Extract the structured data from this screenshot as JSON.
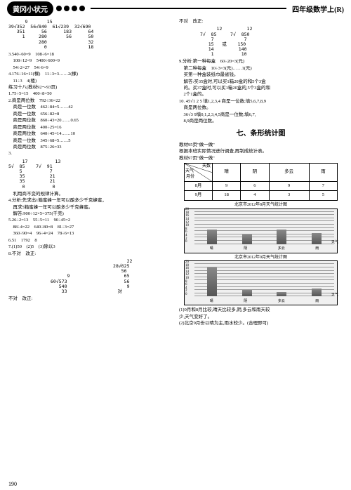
{
  "header": {
    "badge": "黄冈小状元",
    "right": "四年级数学上(R)"
  },
  "left": {
    "div1": [
      "      9       15",
      "39√352  56√840  61√239  32√690",
      "   351      56      183      64",
      "     1     280       56      50",
      "           280               32",
      "             0               18"
    ],
    "l3": "3.540÷60=9　108÷6=18",
    "l4": "　108÷12=9　5400÷600=9",
    "l5": "　54÷2=27　54÷6=9",
    "l6": "4.176÷16=11(棵)　11÷3=3……2(棵)",
    "l7": "　11÷3　4(楼)",
    "l8": "练习十八(教材92～93页)",
    "l9": "1.75÷5=15　400÷8=50",
    "l10": "2.商是两位数　792÷36=22",
    "l11": "　商是一位数　462÷84=5……42",
    "l12": "　商是一位数　656÷82=8",
    "l13": "　商是两位数　860÷43=20……0.65",
    "l14": "　商是两位数　400÷25=16",
    "l15": "　商是两位数　640÷45=14……10",
    "l16": "　商是一位数　345÷68=5……5",
    "l17": "　商是两位数　875÷26=33",
    "l18": "3.",
    "div2": [
      "     17          13",
      "5√  85    7√  91",
      "    5          7",
      "    35         21",
      "    35         21",
      "     0          0"
    ],
    "l19": "　利用商不变的规律计算。",
    "l20": "4.分析:先求出1箱蜜蜂一年可以酿多少千克蜂蜜，",
    "l21": "　再求5箱蜜蜂一年可以酿多少千克蜂蜜。",
    "l22": "　解答:900÷12×5=375(千克)",
    "l23": "5.26÷2=13　55÷5=11　90÷45=2",
    "l24": "　88÷4=22　640÷80=8　81÷3=27",
    "l25": "　360÷90=4　96÷4=24　78÷6=13",
    "l26": "6.51　1792　8",
    "l27": "7.(1)50　(2)5　(3)除以3",
    "l28": "8.不对　改正:",
    "div3": [
      "      9",
      "60√573",
      "   540",
      "    33"
    ],
    "div4": [
      "     22",
      "28√625",
      "   56",
      "    65",
      "    56",
      "     9",
      "　对"
    ],
    "l29": "不对　改正:"
  },
  "right": {
    "div5": [
      "      12         12",
      "7√  85     7√  850",
      "    7           7",
      "   15   或    150",
      "   14         140",
      "    1          10"
    ],
    "l0": "不对　改正:",
    "l1": "9.分析:第一种每盒　60÷20=3(元)",
    "l2": "　第二种每盒　10÷3=3(元)……1(元)",
    "l3": "　买第一种盒装纸巾最省钱。",
    "l4": "　解答:买35盒时,可以买1箱20盒的和5个3盒",
    "l5": "　的。买37盒时,可以买1箱20盒的,5个3盒的和",
    "l6": "　2个1盒的。",
    "l7": "10. 45√1 2 5 填1,2,3,4 商是一位数;填5,6,7,8,9",
    "l8": "　商是两位数。",
    "l9": "　36√3  9填0,1,2,3,4,5商是一位数;填6,7,",
    "l10": "　8,9商是两位数。",
    "section": "七、条形统计图",
    "l11": "教材95页\"做一做\"",
    "l12": "根据本班实际情况进行调查,再制成统计表。",
    "l13": "教材97页\"做一做\"",
    "table": {
      "diag": [
        "天数",
        "天气",
        "月份"
      ],
      "cols": [
        "晴",
        "阴",
        "多云",
        "雨"
      ],
      "rows": [
        [
          "8月",
          "9",
          "6",
          "9",
          "7"
        ],
        [
          "9月",
          "18",
          "4",
          "3",
          "5"
        ]
      ]
    },
    "chart1": {
      "title": "北京市2012年8月天气统计图",
      "ylabel": "天数",
      "xvals": [
        "晴",
        "阴",
        "多云",
        "雨",
        "天气"
      ],
      "bars": [
        9,
        6,
        9,
        7
      ],
      "max": 20
    },
    "chart2": {
      "title": "北京市2012年9月天气统计图",
      "ylabel": "天数",
      "xvals": [
        "晴",
        "阴",
        "多云",
        "雨",
        "天气"
      ],
      "bars": [
        18,
        4,
        3,
        5
      ],
      "max": 20
    },
    "l14": "(1)9月和8月比较,晴天比较多,阴,多云和雨天较",
    "l15": "少,天气变好了。",
    "l16": "(2)北京9月份以晴为主,雨水较少。(合理即可)"
  },
  "page": "190"
}
